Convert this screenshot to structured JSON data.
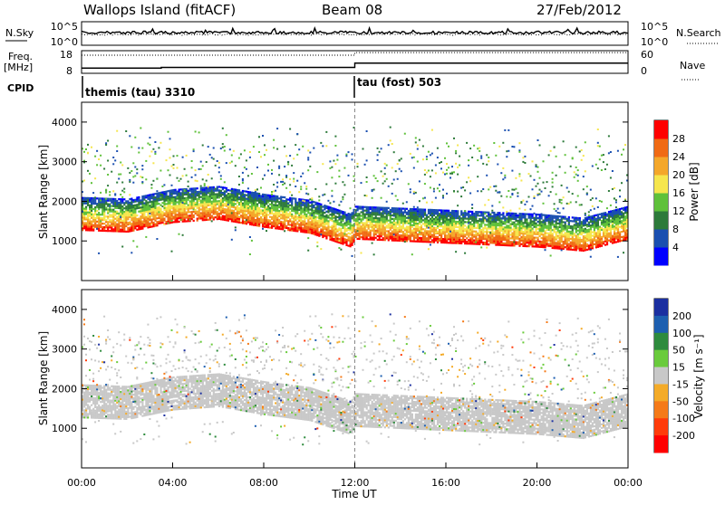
{
  "header": {
    "station": "Wallops Island (fitACF)",
    "beam": "Beam 08",
    "date": "27/Feb/2012"
  },
  "top_panels": {
    "nsky_label": "N.Sky",
    "nsky_ticks": [
      "10^5",
      "10^0"
    ],
    "nsearch_label": "N.Search",
    "nsearch_ticks": [
      "10^5",
      "10^0"
    ],
    "freq_label_line1": "Freq.",
    "freq_label_line2": "[MHz]",
    "freq_ticks": [
      "18",
      "8"
    ],
    "nave_label": "Nave",
    "nave_ticks": [
      "60",
      "0"
    ],
    "cpid_label": "CPID",
    "cpid_segments": [
      {
        "label": "themis (tau) 3310",
        "start_hour": 0
      },
      {
        "label": "tau (fost) 503",
        "start_hour": 12
      }
    ],
    "freq_steps": [
      {
        "start_hour": 0,
        "freq_mhz": 10.3
      },
      {
        "start_hour": 3.5,
        "freq_mhz": 10.6
      },
      {
        "start_hour": 12,
        "freq_mhz": 12.5
      }
    ],
    "nave_steps": [
      {
        "start_hour": 0,
        "nave": 48
      },
      {
        "start_hour": 12,
        "nave": 55
      }
    ]
  },
  "chart_data": [
    {
      "type": "heatmap",
      "name": "power",
      "ylabel": "Slant Range [km]",
      "yticks": [
        "1000",
        "2000",
        "3000",
        "4000"
      ],
      "ylim": [
        0,
        4500
      ],
      "colorbar_label": "Power [dB]",
      "colorbar_ticks": [
        "4",
        "8",
        "12",
        "16",
        "20",
        "24",
        "28"
      ],
      "colorbar_range": [
        0,
        32
      ],
      "colorbar_colors": [
        "#0000ff",
        "#1a4fb0",
        "#2d7a3a",
        "#5fc13a",
        "#f6e64d",
        "#f4a72a",
        "#f06a14",
        "#ff0000"
      ],
      "grid": false,
      "main_band_km": [
        [
          0,
          1420
        ],
        [
          2,
          1380
        ],
        [
          4,
          1620
        ],
        [
          6,
          1700
        ],
        [
          8,
          1500
        ],
        [
          10,
          1350
        ],
        [
          11.8,
          1000
        ],
        [
          12,
          1200
        ],
        [
          14,
          1150
        ],
        [
          16,
          1100
        ],
        [
          18,
          1050
        ],
        [
          20,
          1000
        ],
        [
          22,
          900
        ],
        [
          24,
          1200
        ]
      ]
    },
    {
      "type": "heatmap",
      "name": "velocity",
      "ylabel": "Slant Range [km]",
      "xlabel": "Time UT",
      "yticks": [
        "1000",
        "2000",
        "3000",
        "4000"
      ],
      "xticks": [
        "00:00",
        "04:00",
        "08:00",
        "12:00",
        "16:00",
        "20:00",
        "00:00"
      ],
      "xlim_hours": [
        0,
        24
      ],
      "ylim": [
        0,
        4500
      ],
      "colorbar_label": "Velocity [m s⁻¹]",
      "colorbar_ticks": [
        "200",
        "100",
        "50",
        "15",
        "-15",
        "-50",
        "-100",
        "-200"
      ],
      "colorbar_colors": [
        "#1b2fa0",
        "#1d5fb0",
        "#2e8b3d",
        "#6acb3c",
        "#c8c8c8",
        "#f4ab28",
        "#f57a18",
        "#ff3b0a",
        "#ff0000"
      ],
      "grid": false
    }
  ]
}
